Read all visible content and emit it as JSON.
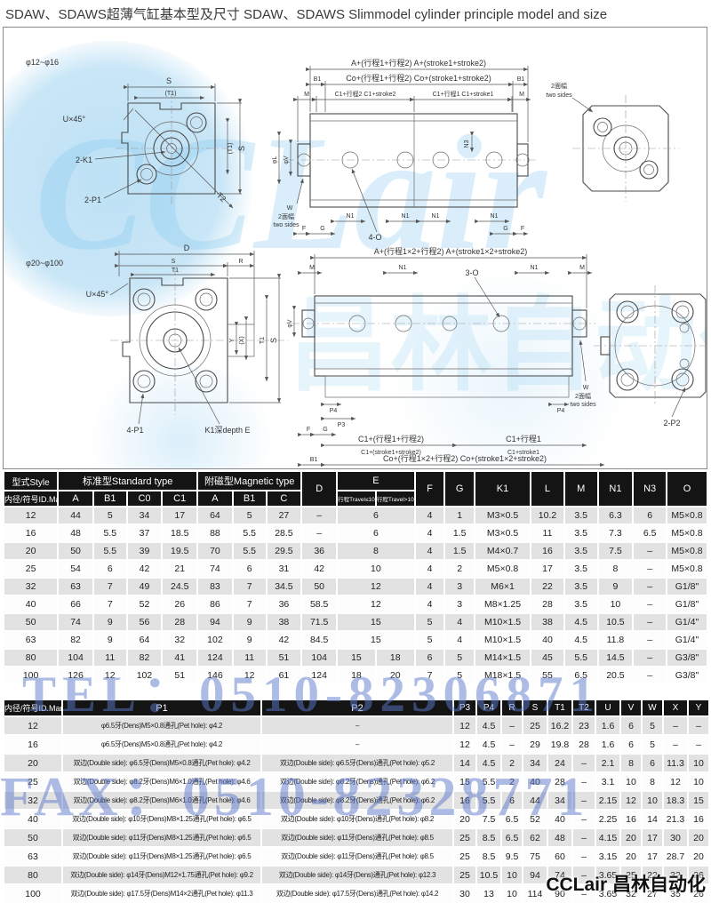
{
  "page": {
    "title": "SDAW、SDAWS超薄气缸基本型及尺寸 SDAW、SDAWS  Slimmodel cylinder principle model and size",
    "watermark_tel": "TEL：0510-82306871",
    "watermark_fax": "FAX：0510-82328771",
    "brand_footer": "CCLair 昌林自动化",
    "brand_watermark": "CCLair",
    "brand_watermark_cn": "昌林自动化"
  },
  "dr": {
    "g1": {
      "range": "φ12~φ16",
      "s": "S",
      "t1p": "(T1)",
      "u45": "U×45°",
      "k1": "2-K1",
      "p1": "2-P1",
      "t2": "T2",
      "a": "A+(行程1+行程2) A+(stroke1+stroke2)",
      "b1": "B1",
      "co": "Co+(行程1+行程2) Co+(stroke1+stroke2)",
      "m": "M",
      "c1b": "C1+行程2 C1+stroke2",
      "c1a": "C1+行程1 C1+stroke1",
      "l": "φL",
      "v": "φV",
      "n1": "N1",
      "n3": "N3",
      "f": "F",
      "g": "G",
      "o": "4-O",
      "w": "W",
      "cn": "2面幅",
      "en": "two sides"
    },
    "g2": {
      "range": "φ20~φ100",
      "d": "D",
      "s": "S",
      "r": "R",
      "t1": "T1",
      "u45": "U×45°",
      "yy": "Y",
      "xx": "(X)",
      "p1": "4-P1",
      "k1e": "K1深depth E",
      "a": "A+(行程1×2+行程2) A+(stroke1×2+stroke2)",
      "m": "M",
      "n1": "N1",
      "o": "3-O",
      "v": "φV",
      "l": "φL",
      "w": "W",
      "cn": "2面幅",
      "en": "two sides",
      "p3": "P3",
      "p4": "P4",
      "f": "F",
      "g": "G",
      "c1a": "C1+(行程1+行程2)",
      "c1ae": "C1+(stroke1+stroke2)",
      "c1b": "C1+行程1",
      "c1be": "C1+stroke1",
      "b1": "B1",
      "co": "Co+(行程1×2+行程2) Co+(stroke1×2+stroke2)",
      "p2": "2-P2"
    }
  },
  "table1": {
    "header": {
      "style": "型式Style",
      "idmark": "内径/符号ID.Mark",
      "std": "标准型Standard type",
      "mag": "附磁型Magnetic type",
      "a": "A",
      "b1": "B1",
      "c0": "C0",
      "c1": "C1",
      "a2": "A",
      "b12": "B1",
      "c": "C",
      "d": "D",
      "e": "E",
      "e1": "行程Travel≤10",
      "e2": "行程Travel>10",
      "f": "F",
      "g": "G",
      "k1": "K1",
      "l": "L",
      "m": "M",
      "n1": "N1",
      "n3": "N3",
      "o": "O"
    },
    "rows": [
      {
        "id": "12",
        "v": [
          44,
          5,
          34,
          17,
          64,
          5,
          27,
          "–",
          "6",
          null,
          4,
          1,
          "M3×0.5",
          10.2,
          3.5,
          6.3,
          6,
          "M5×0.8"
        ]
      },
      {
        "id": "16",
        "v": [
          48,
          5.5,
          37,
          18.5,
          88,
          5.5,
          28.5,
          "–",
          "6",
          null,
          4,
          1.5,
          "M3×0.5",
          11,
          3.5,
          7.3,
          6.5,
          "M5×0.8"
        ]
      },
      {
        "id": "20",
        "v": [
          50,
          5.5,
          39,
          19.5,
          70,
          5.5,
          29.5,
          36,
          "8",
          null,
          4,
          1.5,
          "M4×0.7",
          16,
          3.5,
          7.5,
          "–",
          "M5×0.8"
        ]
      },
      {
        "id": "25",
        "v": [
          54,
          6,
          42,
          21,
          74,
          6,
          31,
          42,
          "10",
          null,
          4,
          2,
          "M5×0.8",
          17,
          3.5,
          8,
          "–",
          "M5×0.8"
        ]
      },
      {
        "id": "32",
        "v": [
          63,
          7,
          49,
          24.5,
          83,
          7,
          34.5,
          50,
          "12",
          null,
          4,
          3,
          "M6×1",
          22,
          3.5,
          9,
          "–",
          "G1/8\""
        ]
      },
      {
        "id": "40",
        "v": [
          66,
          7,
          52,
          26,
          86,
          7,
          36,
          58.5,
          "12",
          null,
          4,
          3,
          "M8×1.25",
          28,
          3.5,
          10,
          "–",
          "G1/8\""
        ]
      },
      {
        "id": "50",
        "v": [
          74,
          9,
          56,
          28,
          94,
          9,
          38,
          71.5,
          "15",
          null,
          5,
          4,
          "M10×1.5",
          38,
          4.5,
          10.5,
          "–",
          "G1/4\""
        ]
      },
      {
        "id": "63",
        "v": [
          82,
          9,
          64,
          32,
          102,
          9,
          42,
          84.5,
          "15",
          null,
          5,
          4,
          "M10×1.5",
          40,
          4.5,
          11.8,
          "–",
          "G1/4\""
        ]
      },
      {
        "id": "80",
        "v": [
          104,
          11,
          82,
          41,
          124,
          11,
          51,
          104,
          "15",
          "18",
          6,
          5,
          "M14×1.5",
          45,
          5.5,
          14.5,
          "–",
          "G3/8\""
        ]
      },
      {
        "id": "100",
        "v": [
          126,
          12,
          102,
          51,
          146,
          12,
          61,
          124,
          "18",
          "20",
          7,
          5,
          "M18×1.5",
          55,
          6.5,
          20.5,
          "–",
          "G3/8\""
        ]
      }
    ]
  },
  "table2": {
    "header": {
      "idmark": "内径/符号ID.Mark",
      "p1": "P1",
      "p2": "P2",
      "p3": "P3",
      "p4": "P4",
      "r": "R",
      "s": "S",
      "t1": "T1",
      "t2": "T2",
      "u": "U",
      "v": "V",
      "w": "W",
      "x": "X",
      "y": "Y"
    },
    "rows": [
      {
        "id": "12",
        "p1": "φ6.5牙(Dens)M5×0.8通孔(Pet hole): φ4.2",
        "p2": "–",
        "v": [
          12,
          4.5,
          "–",
          25,
          16.2,
          23,
          1.6,
          6,
          5,
          "–",
          "–"
        ]
      },
      {
        "id": "16",
        "p1": "φ6.5牙(Dens)M5×0.8通孔(Pet hole): φ4.2",
        "p2": "–",
        "v": [
          12,
          4.5,
          "–",
          29,
          19.8,
          28,
          1.6,
          6,
          5,
          "–",
          "–"
        ]
      },
      {
        "id": "20",
        "p1": "双边(Double side): φ6.5牙(Dens)M5×0.8通孔(Pet hole): φ4.2",
        "p2": "双边(Double side): φ6.5牙(Dens)通孔(Pet hole): φ5.2",
        "v": [
          14,
          4.5,
          2,
          34,
          24,
          "–",
          2.1,
          8,
          6,
          11.3,
          10
        ]
      },
      {
        "id": "25",
        "p1": "双边(Double side): φ8.2牙(Dens)M6×1.0通孔(Pet hole): φ4.6",
        "p2": "双边(Double side): φ8.2牙(Dens)通孔(Pet hole): φ6.2",
        "v": [
          15,
          5.5,
          2,
          40,
          28,
          "–",
          3.1,
          10,
          8,
          12,
          10
        ]
      },
      {
        "id": "32",
        "p1": "双边(Double side): φ8.2牙(Dens)M6×1.0通孔(Pet hole): φ4.6",
        "p2": "双边(Double side): φ8.2牙(Dens)通孔(Pet hole): φ6.2",
        "v": [
          16,
          5.5,
          6,
          44,
          34,
          "–",
          2.15,
          12,
          10,
          18.3,
          15
        ]
      },
      {
        "id": "40",
        "p1": "双边(Double side): φ10牙(Dens)M8×1.25通孔(Pet hole): φ6.5",
        "p2": "双边(Double side): φ10牙(Dens)通孔(Pet hole): φ8.2",
        "v": [
          20,
          7.5,
          6.5,
          52,
          40,
          "–",
          2.25,
          16,
          14,
          21.3,
          16
        ]
      },
      {
        "id": "50",
        "p1": "双边(Double side): φ11牙(Dens)M8×1.25通孔(Pet hole): φ6.5",
        "p2": "双边(Double side): φ11牙(Dens)通孔(Pet hole): φ8.5",
        "v": [
          25,
          8.5,
          6.5,
          62,
          48,
          "–",
          4.15,
          20,
          17,
          30,
          20
        ]
      },
      {
        "id": "63",
        "p1": "双边(Double side): φ11牙(Dens)M8×1.25通孔(Pet hole): φ6.5",
        "p2": "双边(Double side): φ11牙(Dens)通孔(Pet hole): φ8.5",
        "v": [
          25,
          8.5,
          9.5,
          75,
          60,
          "–",
          3.15,
          20,
          17,
          28.7,
          20
        ]
      },
      {
        "id": "80",
        "p1": "双边(Double side): φ14牙(Dens)M12×1.75通孔(Pet hole): φ9.2",
        "p2": "双边(Double side): φ14牙(Dens)通孔(Pet hole): φ12.3",
        "v": [
          25,
          10.5,
          10,
          94,
          74,
          "–",
          3.65,
          25,
          22,
          32,
          26
        ]
      },
      {
        "id": "100",
        "p1": "双边(Double side): φ17.5牙(Dens)M14×2通孔(Pet hole): φ11.3",
        "p2": "双边(Double side): φ17.5牙(Dens)通孔(Pet hole): φ14.2",
        "v": [
          30,
          13,
          10,
          114,
          90,
          "–",
          3.65,
          32,
          27,
          35,
          26
        ]
      }
    ]
  }
}
